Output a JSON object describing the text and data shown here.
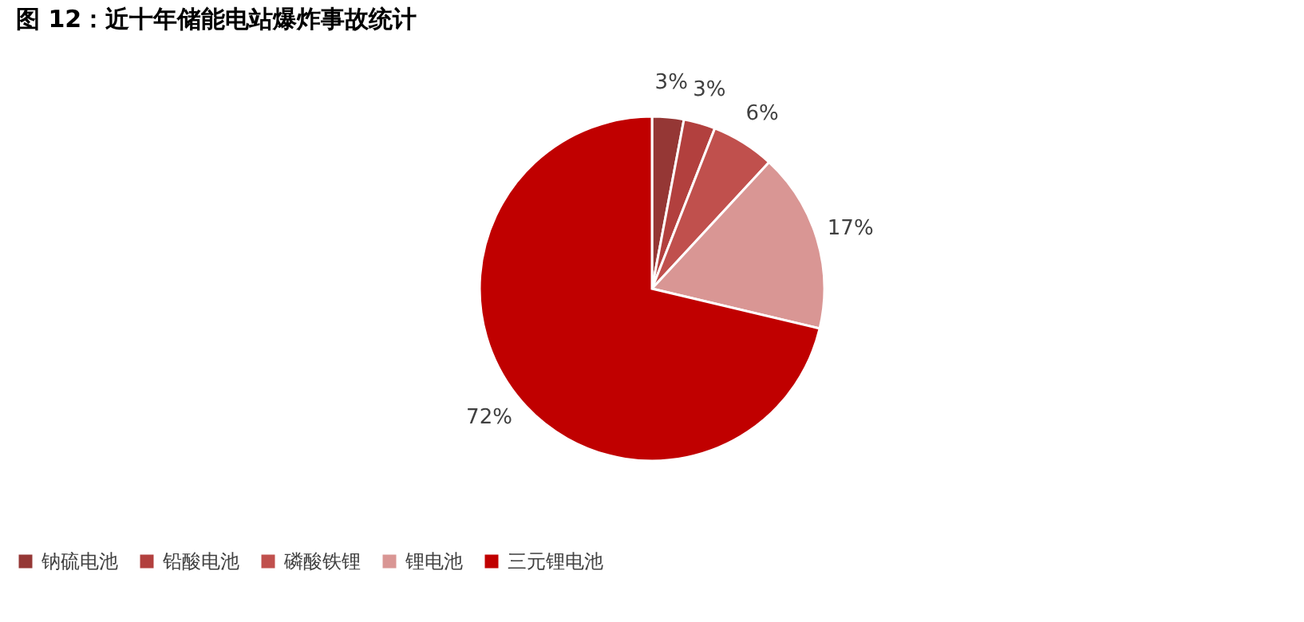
{
  "chart_data": {
    "type": "pie",
    "title": "图 12：近十年储能电站爆炸事故统计",
    "categories": [
      "钠硫电池",
      "铅酸电池",
      "磷酸铁锂",
      "锂电池",
      "三元锂电池"
    ],
    "values": [
      3,
      3,
      6,
      17,
      72
    ],
    "value_labels": [
      "3%",
      "3%",
      "6%",
      "17%",
      "72%"
    ],
    "colors": [
      "#953735",
      "#b2403e",
      "#c0504d",
      "#d99694",
      "#c00000"
    ],
    "legend": "bottom"
  }
}
